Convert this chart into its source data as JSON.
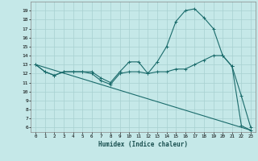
{
  "xlabel": "Humidex (Indice chaleur)",
  "bg_color": "#c5e8e8",
  "line_color": "#1a6b6b",
  "grid_color": "#a8d0d0",
  "ylim": [
    5.5,
    20
  ],
  "xlim": [
    -0.5,
    23.5
  ],
  "yticks": [
    6,
    7,
    8,
    9,
    10,
    11,
    12,
    13,
    14,
    15,
    16,
    17,
    18,
    19
  ],
  "xticks": [
    0,
    1,
    2,
    3,
    4,
    5,
    6,
    7,
    8,
    9,
    10,
    11,
    12,
    13,
    14,
    15,
    16,
    17,
    18,
    19,
    20,
    21,
    22,
    23
  ],
  "line1_x": [
    0,
    1,
    2,
    3,
    4,
    5,
    6,
    7,
    8,
    9,
    10,
    11,
    12,
    13,
    14,
    15,
    16,
    17,
    18,
    19,
    20,
    21,
    22,
    23
  ],
  "line1_y": [
    13.0,
    12.2,
    11.8,
    12.2,
    12.2,
    12.2,
    12.2,
    11.5,
    11.0,
    12.2,
    13.3,
    13.3,
    12.0,
    13.3,
    15.0,
    17.8,
    19.0,
    19.2,
    18.2,
    17.0,
    14.0,
    12.8,
    9.5,
    6.0
  ],
  "line2_x": [
    0,
    1,
    2,
    3,
    4,
    5,
    6,
    7,
    8,
    9,
    10,
    11,
    12,
    13,
    14,
    15,
    16,
    17,
    18,
    19,
    20,
    21,
    22,
    23
  ],
  "line2_y": [
    13.0,
    12.2,
    11.8,
    12.2,
    12.2,
    12.2,
    12.0,
    11.2,
    10.8,
    12.0,
    12.2,
    12.2,
    12.0,
    12.2,
    12.2,
    12.5,
    12.5,
    13.0,
    13.5,
    14.0,
    14.0,
    12.8,
    6.2,
    5.7
  ],
  "line3_x": [
    0,
    23
  ],
  "line3_y": [
    13.0,
    5.7
  ],
  "marker": "+"
}
